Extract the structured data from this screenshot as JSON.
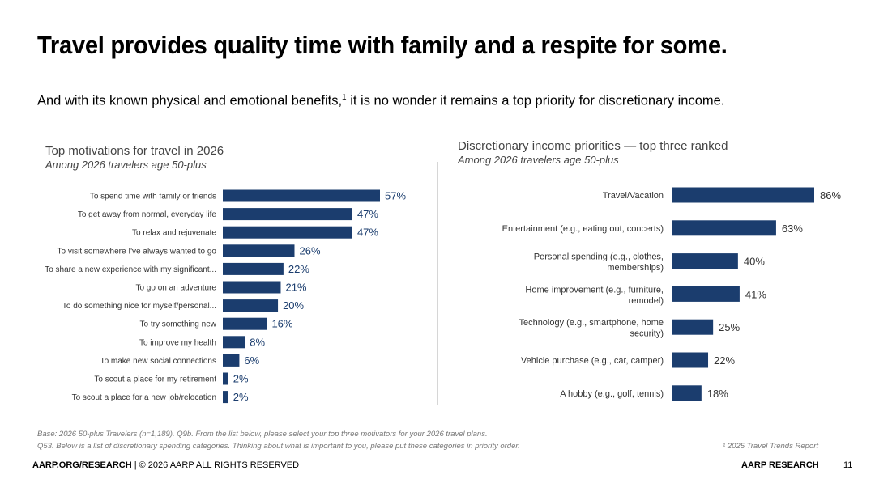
{
  "title": "Travel provides quality time with family and a respite for some.",
  "subtitle": {
    "text": "And with its known physical and emotional benefits,",
    "sup": "1",
    "text_after": " it is no wonder it remains a top priority for discretionary income."
  },
  "colors": {
    "bar": "#1b3d6e",
    "value_left": "#1b3d6e",
    "value_right": "#333333"
  },
  "chart_data": [
    {
      "type": "bar",
      "orientation": "horizontal",
      "title": "Top motivations for travel in 2026",
      "subtitle": "Among 2026 travelers age 50-plus",
      "xlim": [
        0,
        100
      ],
      "categories": [
        "To spend time with family or friends",
        "To get away from normal, everyday life",
        "To relax and rejuvenate",
        "To visit somewhere I've always wanted to go",
        "To share a new experience with my significant...",
        "To go on an adventure",
        "To do something nice for myself/personal...",
        "To try something new",
        "To improve my health",
        "To make new social connections",
        "To scout a place for my retirement",
        "To scout a place for a new job/relocation"
      ],
      "values": [
        57,
        47,
        47,
        26,
        22,
        21,
        20,
        16,
        8,
        6,
        2,
        2
      ],
      "value_labels": [
        "57%",
        "47%",
        "47%",
        "26%",
        "22%",
        "21%",
        "20%",
        "16%",
        "8%",
        "6%",
        "2%",
        "2%"
      ]
    },
    {
      "type": "bar",
      "orientation": "horizontal",
      "title": "Discretionary income priorities — top three ranked",
      "subtitle": "Among 2026 travelers age 50-plus",
      "xlim": [
        0,
        100
      ],
      "categories": [
        [
          "Travel/Vacation"
        ],
        [
          "Entertainment (e.g., eating out, concerts)"
        ],
        [
          "Personal spending (e.g., clothes,",
          "memberships)"
        ],
        [
          "Home improvement (e.g., furniture,",
          "remodel)"
        ],
        [
          "Technology (e.g., smartphone, home",
          "security)"
        ],
        [
          "Vehicle purchase (e.g., car, camper)"
        ],
        [
          "A hobby (e.g., golf, tennis)"
        ]
      ],
      "values": [
        86,
        63,
        40,
        41,
        25,
        22,
        18
      ],
      "value_labels": [
        "86%",
        "63%",
        "40%",
        "41%",
        "25%",
        "22%",
        "18%"
      ]
    }
  ],
  "footnotes": {
    "line1": "Base: 2026 50-plus Travelers (n=1,189). Q9b. From the list below, please select your top three motivators for your 2026 travel plans.",
    "line2": "Q53. Below is a list of discretionary spending categories. Thinking about what is important to you, please put these categories in priority order.",
    "ref": "¹ 2025 Travel Trends Report"
  },
  "footer": {
    "left_bold": "AARP.ORG/RESEARCH",
    "left_rest": " | © 2026 AARP ALL RIGHTS RESERVED",
    "brand": "AARP RESEARCH",
    "page": "11"
  }
}
